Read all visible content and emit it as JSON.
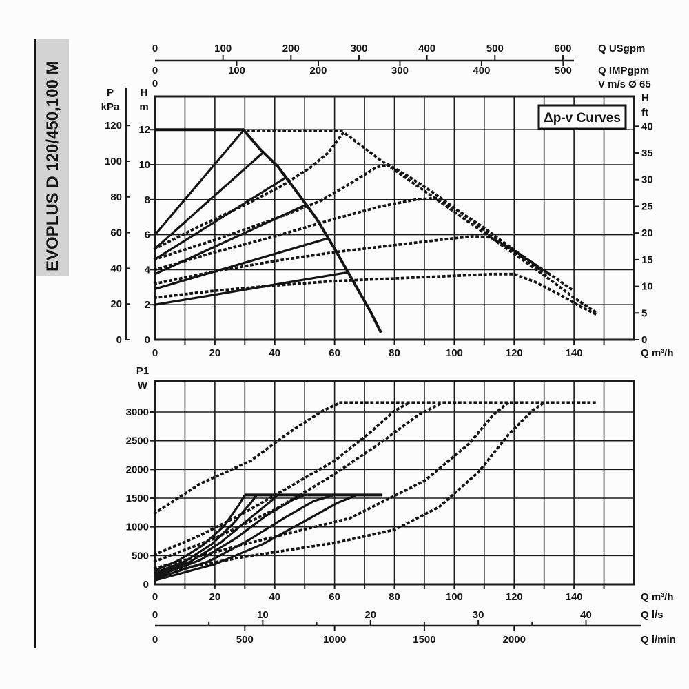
{
  "sidebar": {
    "model": "EVOPLUS D 120/450,100 M"
  },
  "colors": {
    "ink": "#141414",
    "grid": "#1c1c1c",
    "sidebar_bg": "#d2d2d2",
    "background": "#fcfcfc",
    "box_fill": "#fdfdfd"
  },
  "chart_data": [
    {
      "type": "line",
      "title": "Δp-v Curves",
      "xlabel": "Q m³/h",
      "x_axis_m3h": {
        "ticks_every": 10,
        "labels": [
          0,
          20,
          40,
          60,
          80,
          100,
          120,
          140
        ],
        "unit": "Q m³/h",
        "range": [
          0,
          160
        ]
      },
      "left_axis_kpa": {
        "headers": [
          "P",
          "kPa"
        ],
        "labels": [
          0,
          20,
          40,
          60,
          80,
          100,
          120
        ]
      },
      "left_axis_m": {
        "headers": [
          "H",
          "m"
        ],
        "labels": [
          0,
          2,
          4,
          6,
          8,
          10,
          12
        ],
        "range": [
          0,
          13.9
        ]
      },
      "right_axis_ft": {
        "headers": [
          "H",
          "ft"
        ],
        "labels": [
          0,
          5,
          10,
          15,
          20,
          25,
          30,
          35,
          40
        ]
      },
      "top_axis_usgpm": {
        "labels": [
          0,
          100,
          200,
          300,
          400,
          500,
          600
        ],
        "unit": "Q USgpm"
      },
      "top_axis_impgpm": {
        "labels": [
          0,
          100,
          200,
          300,
          400,
          500
        ],
        "unit": "Q IMPgpm"
      },
      "top_axis_v": {
        "labels": [
          0
        ],
        "unit": "V m/s Ø 65"
      },
      "series": [
        {
          "name": "max-speed-curve",
          "style": "solid",
          "w": 4,
          "pts": [
            [
              0,
              12
            ],
            [
              29.5,
              12
            ],
            [
              35,
              10.9
            ],
            [
              41,
              9.9
            ],
            [
              48,
              8.3
            ],
            [
              54,
              6.9
            ],
            [
              60,
              5.2
            ],
            [
              66,
              3.4
            ],
            [
              72,
              1.6
            ],
            [
              75.5,
              0.4
            ]
          ]
        },
        {
          "name": "setpoint-line-1",
          "style": "solid",
          "pts": [
            [
              0,
              6.0
            ],
            [
              29.5,
              11.95
            ]
          ]
        },
        {
          "name": "setpoint-line-2",
          "style": "solid",
          "pts": [
            [
              0,
              5.2
            ],
            [
              36.5,
              10.75
            ]
          ]
        },
        {
          "name": "setpoint-line-3",
          "style": "solid",
          "pts": [
            [
              0,
              4.6
            ],
            [
              44,
              9.3
            ]
          ]
        },
        {
          "name": "setpoint-line-4",
          "style": "solid",
          "pts": [
            [
              0,
              3.75
            ],
            [
              51,
              7.75
            ]
          ]
        },
        {
          "name": "setpoint-line-5",
          "style": "solid",
          "pts": [
            [
              0,
              2.9
            ],
            [
              58,
              5.8
            ]
          ]
        },
        {
          "name": "setpoint-line-6",
          "style": "solid",
          "pts": [
            [
              0,
              2.0
            ],
            [
              64.5,
              3.85
            ]
          ]
        },
        {
          "name": "parallel-plateau",
          "style": "dotted",
          "pts": [
            [
              31,
              11.95
            ],
            [
              63,
              11.95
            ]
          ]
        },
        {
          "name": "dpv-curve-1",
          "style": "dotted",
          "pts": [
            [
              0,
              5.2
            ],
            [
              15,
              6.5
            ],
            [
              30,
              7.7
            ],
            [
              42,
              8.75
            ],
            [
              52,
              9.85
            ],
            [
              58,
              10.7
            ],
            [
              63,
              11.85
            ],
            [
              68,
              11.2
            ],
            [
              75,
              10.3
            ],
            [
              85,
              9.1
            ],
            [
              95,
              7.9
            ],
            [
              105,
              6.7
            ],
            [
              115,
              5.5
            ],
            [
              125,
              4.3
            ],
            [
              133,
              3.3
            ],
            [
              140,
              2.4
            ],
            [
              147,
              1.6
            ]
          ]
        },
        {
          "name": "dpv-curve-2",
          "style": "dotted",
          "pts": [
            [
              0,
              4.6
            ],
            [
              20,
              5.7
            ],
            [
              40,
              6.9
            ],
            [
              55,
              7.9
            ],
            [
              66,
              9.0
            ],
            [
              74,
              9.85
            ],
            [
              78,
              10.0
            ],
            [
              85,
              9.3
            ],
            [
              93,
              8.4
            ],
            [
              101,
              7.4
            ],
            [
              109,
              6.4
            ],
            [
              117,
              5.4
            ],
            [
              125,
              4.4
            ],
            [
              131,
              3.6
            ]
          ]
        },
        {
          "name": "dpv-curve-3",
          "style": "dotted",
          "pts": [
            [
              0,
              4.0
            ],
            [
              20,
              5.0
            ],
            [
              40,
              5.9
            ],
            [
              60,
              6.9
            ],
            [
              75,
              7.6
            ],
            [
              87,
              8.0
            ],
            [
              94,
              8.1
            ],
            [
              101,
              7.4
            ],
            [
              109,
              6.5
            ],
            [
              117,
              5.5
            ],
            [
              125,
              4.5
            ],
            [
              132,
              3.7
            ]
          ]
        },
        {
          "name": "dpv-curve-4",
          "style": "dotted",
          "pts": [
            [
              0,
              3.2
            ],
            [
              20,
              3.9
            ],
            [
              40,
              4.5
            ],
            [
              60,
              5.0
            ],
            [
              80,
              5.4
            ],
            [
              95,
              5.7
            ],
            [
              106,
              5.9
            ],
            [
              112,
              5.85
            ],
            [
              119,
              5.2
            ],
            [
              127,
              4.3
            ],
            [
              134,
              3.5
            ],
            [
              139,
              2.9
            ]
          ]
        },
        {
          "name": "dpv-curve-5",
          "style": "dotted",
          "pts": [
            [
              0,
              2.4
            ],
            [
              20,
              2.8
            ],
            [
              40,
              3.1
            ],
            [
              60,
              3.35
            ],
            [
              80,
              3.5
            ],
            [
              100,
              3.65
            ],
            [
              112,
              3.75
            ],
            [
              120,
              3.75
            ],
            [
              127,
              3.3
            ],
            [
              135,
              2.6
            ],
            [
              142,
              1.9
            ],
            [
              148,
              1.4
            ]
          ]
        }
      ]
    },
    {
      "type": "line",
      "title": "",
      "xlabel": "Q m³/h",
      "left_axis_w": {
        "headers": [
          "P1",
          "W"
        ],
        "labels": [
          0,
          500,
          1000,
          1500,
          2000,
          2500,
          3000
        ],
        "range": [
          0,
          3540
        ]
      },
      "x_axis_m3h": {
        "ticks_every": 10,
        "labels": [
          0,
          20,
          40,
          60,
          80,
          100,
          120,
          140
        ],
        "unit": "Q m³/h",
        "range": [
          0,
          160
        ]
      },
      "x_axis_ls": {
        "labels": [
          0,
          10,
          20,
          30,
          40
        ],
        "unit": "Q l/s"
      },
      "x_axis_lmin": {
        "labels": [
          0,
          500,
          1000,
          1500,
          2000
        ],
        "unit": "Q l/min"
      },
      "series": [
        {
          "name": "power-max-cap",
          "style": "solid",
          "w": 4,
          "pts": [
            [
              30,
              1555
            ],
            [
              76,
              1555
            ]
          ]
        },
        {
          "name": "power-curve-1",
          "style": "solid",
          "pts": [
            [
              0,
              240
            ],
            [
              8,
              420
            ],
            [
              16,
              680
            ],
            [
              23,
              1010
            ],
            [
              28,
              1380
            ],
            [
              30,
              1555
            ]
          ]
        },
        {
          "name": "power-curve-2",
          "style": "solid",
          "pts": [
            [
              0,
              200
            ],
            [
              10,
              400
            ],
            [
              19,
              700
            ],
            [
              26,
              1050
            ],
            [
              32,
              1420
            ],
            [
              34,
              1555
            ]
          ]
        },
        {
          "name": "power-curve-3",
          "style": "solid",
          "pts": [
            [
              0,
              165
            ],
            [
              12,
              400
            ],
            [
              22,
              730
            ],
            [
              31,
              1120
            ],
            [
              39,
              1460
            ],
            [
              41,
              1555
            ]
          ]
        },
        {
          "name": "power-curve-4",
          "style": "solid",
          "pts": [
            [
              0,
              130
            ],
            [
              15,
              420
            ],
            [
              27,
              800
            ],
            [
              37,
              1190
            ],
            [
              46,
              1470
            ],
            [
              50,
              1555
            ]
          ]
        },
        {
          "name": "power-curve-5",
          "style": "solid",
          "pts": [
            [
              0,
              100
            ],
            [
              18,
              400
            ],
            [
              31,
              760
            ],
            [
              43,
              1150
            ],
            [
              53,
              1450
            ],
            [
              60,
              1555
            ]
          ]
        },
        {
          "name": "power-curve-6",
          "style": "solid",
          "pts": [
            [
              0,
              70
            ],
            [
              20,
              350
            ],
            [
              36,
              700
            ],
            [
              50,
              1100
            ],
            [
              61,
              1420
            ],
            [
              67,
              1545
            ]
          ]
        },
        {
          "name": "power-plateau-parallel",
          "style": "dotted",
          "pts": [
            [
              62,
              3165
            ],
            [
              148,
              3165
            ]
          ]
        },
        {
          "name": "power-dotted-1",
          "style": "dotted",
          "pts": [
            [
              0,
              1240
            ],
            [
              15,
              1750
            ],
            [
              32,
              2150
            ],
            [
              45,
              2650
            ],
            [
              56,
              3020
            ],
            [
              62,
              3165
            ]
          ]
        },
        {
          "name": "power-dotted-2",
          "style": "dotted",
          "pts": [
            [
              0,
              520
            ],
            [
              15,
              850
            ],
            [
              30,
              1250
            ],
            [
              45,
              1700
            ],
            [
              60,
              2150
            ],
            [
              72,
              2650
            ],
            [
              80,
              3020
            ],
            [
              85,
              3165
            ]
          ]
        },
        {
          "name": "power-dotted-3",
          "style": "dotted",
          "pts": [
            [
              0,
              400
            ],
            [
              20,
              800
            ],
            [
              40,
              1300
            ],
            [
              58,
              1850
            ],
            [
              75,
              2450
            ],
            [
              88,
              2950
            ],
            [
              96,
              3165
            ]
          ]
        },
        {
          "name": "power-dotted-4",
          "style": "dotted",
          "pts": [
            [
              0,
              280
            ],
            [
              30,
              700
            ],
            [
              65,
              1150
            ],
            [
              90,
              1800
            ],
            [
              105,
              2450
            ],
            [
              113,
              2950
            ],
            [
              118,
              3165
            ]
          ]
        },
        {
          "name": "power-dotted-5",
          "style": "dotted",
          "pts": [
            [
              0,
              190
            ],
            [
              30,
              480
            ],
            [
              60,
              720
            ],
            [
              80,
              950
            ],
            [
              95,
              1350
            ],
            [
              108,
              1950
            ],
            [
              118,
              2600
            ],
            [
              126,
              3020
            ],
            [
              130,
              3165
            ]
          ]
        }
      ]
    }
  ]
}
